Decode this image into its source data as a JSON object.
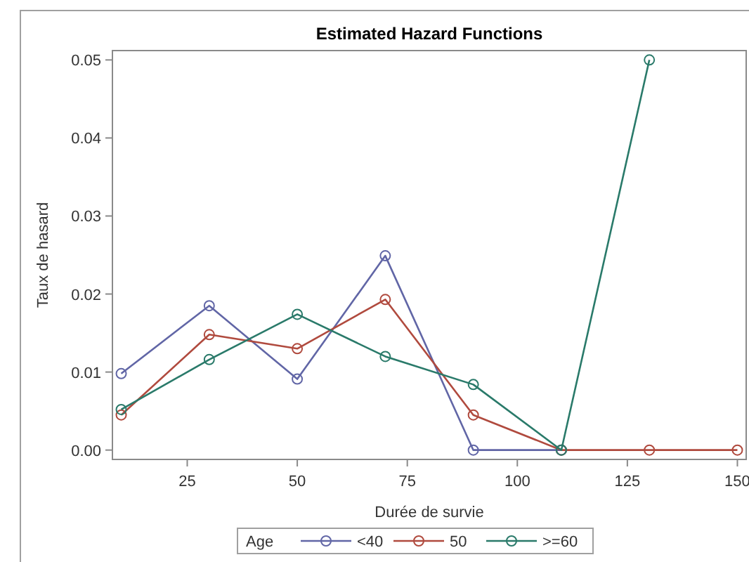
{
  "chart_data": {
    "type": "line",
    "title": "Estimated Hazard Functions",
    "xlabel": "Durée de survie",
    "ylabel": "Taux de hasard",
    "legend_title": "Age",
    "legend": "bottom",
    "marker": "circle",
    "line_style": "solid",
    "grid": false,
    "xlim": [
      8,
      152
    ],
    "xticks": [
      25,
      50,
      75,
      100,
      125,
      150
    ],
    "ylim": [
      -0.0012,
      0.0512
    ],
    "yticks": [
      {
        "value": 0,
        "label": "0.00"
      },
      {
        "value": 0.01,
        "label": "0.01"
      },
      {
        "value": 0.02,
        "label": "0.02"
      },
      {
        "value": 0.03,
        "label": "0.03"
      },
      {
        "value": 0.04,
        "label": "0.04"
      },
      {
        "value": 0.05,
        "label": "0.05"
      }
    ],
    "series": [
      {
        "name": "<40",
        "color": "#6166a6",
        "x": [
          10,
          30,
          50,
          70,
          90,
          110
        ],
        "values": [
          0.0098,
          0.0185,
          0.0091,
          0.0249,
          0,
          0
        ]
      },
      {
        "name": "50",
        "color": "#b04a3e",
        "x": [
          10,
          30,
          50,
          70,
          90,
          110,
          130,
          150
        ],
        "values": [
          0.0045,
          0.0148,
          0.013,
          0.0193,
          0.0045,
          0,
          0,
          0
        ]
      },
      {
        "name": ">=60",
        "color": "#2a7a6a",
        "x": [
          10,
          30,
          50,
          70,
          90,
          110,
          130
        ],
        "values": [
          0.0052,
          0.0116,
          0.0174,
          0.012,
          0.0084,
          0,
          0.05
        ]
      }
    ]
  }
}
